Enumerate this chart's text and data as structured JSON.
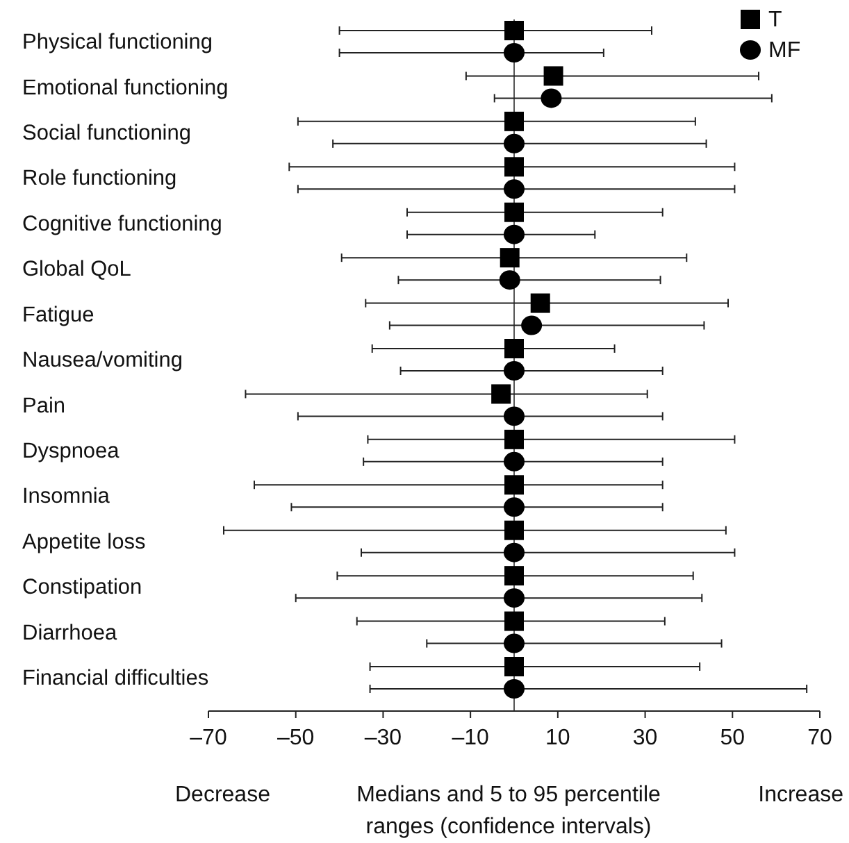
{
  "chart_data": {
    "type": "scatter",
    "orientation": "horizontal",
    "xlabel": "Medians and 5 to 95 percentile ranges (confidence intervals)",
    "categories": [
      "Physical functioning",
      "Emotional functioning",
      "Social functioning",
      "Role functioning",
      "Cognitive functioning",
      "Global QoL",
      "Fatigue",
      "Nausea/vomiting",
      "Pain",
      "Dyspnoea",
      "Insomnia",
      "Appetite loss",
      "Constipation",
      "Diarrhoea",
      "Financial difficulties"
    ],
    "series": [
      {
        "name": "MF",
        "color": "#000000",
        "marker": "circle",
        "values": [
          0,
          8.5,
          0,
          0,
          0,
          -1,
          4,
          0,
          0,
          0,
          0,
          0,
          0,
          0,
          0
        ],
        "errors": [
          [
            -40,
            20.5
          ],
          [
            -4.5,
            59
          ],
          [
            -41.5,
            44
          ],
          [
            -49.5,
            50.5
          ],
          [
            -24.5,
            18.5
          ],
          [
            -26.5,
            33.5
          ],
          [
            -28.5,
            43.5
          ],
          [
            -26,
            34
          ],
          [
            -49.5,
            34
          ],
          [
            -34.5,
            34
          ],
          [
            -51,
            34
          ],
          [
            -35,
            50.5
          ],
          [
            -50,
            43
          ],
          [
            -20,
            47.5
          ],
          [
            -33,
            67
          ]
        ]
      },
      {
        "name": "T",
        "color": "#000000",
        "marker": "square",
        "values": [
          0,
          9,
          0,
          0,
          0,
          -1,
          6,
          0,
          -3,
          0,
          0,
          0,
          0,
          0,
          0
        ],
        "errors": [
          [
            -40,
            31.5
          ],
          [
            -11,
            56
          ],
          [
            -49.5,
            41.5
          ],
          [
            -51.5,
            50.5
          ],
          [
            -24.5,
            34
          ],
          [
            -39.5,
            39.5
          ],
          [
            -34,
            49
          ],
          [
            -32.5,
            23
          ],
          [
            -61.5,
            30.5
          ],
          [
            -33.5,
            50.5
          ],
          [
            -59.5,
            34
          ],
          [
            -66.5,
            48.5
          ],
          [
            -40.5,
            41
          ],
          [
            -36,
            34.5
          ],
          [
            -33,
            42.5
          ]
        ]
      }
    ],
    "xlim": [
      -70,
      70
    ],
    "xticks": [
      {
        "value": -70,
        "label": "–70"
      },
      {
        "value": -50,
        "label": "–50"
      },
      {
        "value": -30,
        "label": "–30"
      },
      {
        "value": -10,
        "label": "–10"
      },
      10,
      30,
      50,
      70
    ],
    "ref_lines": [
      {
        "axis": "x",
        "value": 0,
        "color": "#555555"
      }
    ],
    "annotations": [
      "Decrease",
      "Increase"
    ],
    "legend": "top right",
    "grid": false
  }
}
